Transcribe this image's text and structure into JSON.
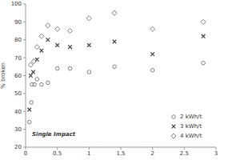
{
  "chart_data": {
    "type": "scatter",
    "y_label": "% broken",
    "annotation": "Single Impact",
    "xlim": [
      0,
      3
    ],
    "xticks": [
      0,
      0.5,
      1,
      1.5,
      2,
      2.5,
      3
    ],
    "ylim": [
      20,
      100
    ],
    "yticks": [
      20,
      30,
      40,
      50,
      60,
      70,
      80,
      90,
      100
    ],
    "grid": false,
    "legend": "lower right",
    "series": [
      {
        "name": "2 kWh/t",
        "color": "#7f7f7f",
        "marker": "circle",
        "x": [
          0.06,
          0.09,
          0.1,
          0.14,
          0.18,
          0.25,
          0.35,
          0.5,
          0.7,
          1.0,
          1.4,
          2.0,
          2.8
        ],
        "values": [
          34,
          45,
          55,
          55,
          58,
          55,
          56,
          64,
          64,
          62,
          65,
          63,
          67
        ]
      },
      {
        "name": "3 kWh/t",
        "color": "#404040",
        "marker": "x",
        "x": [
          0.06,
          0.08,
          0.12,
          0.18,
          0.25,
          0.35,
          0.5,
          0.7,
          1.0,
          1.4,
          2.0,
          2.8
        ],
        "values": [
          41,
          60,
          62,
          69,
          74,
          80,
          77,
          76,
          77,
          79,
          72,
          82
        ]
      },
      {
        "name": "4 kWh/t",
        "color": "#7f7f7f",
        "marker": "diamond",
        "x": [
          0.08,
          0.13,
          0.18,
          0.25,
          0.35,
          0.5,
          0.7,
          1.0,
          1.4,
          2.0,
          2.8
        ],
        "values": [
          66,
          68,
          76,
          82,
          88,
          86,
          85,
          92,
          95,
          86,
          90
        ]
      }
    ]
  }
}
